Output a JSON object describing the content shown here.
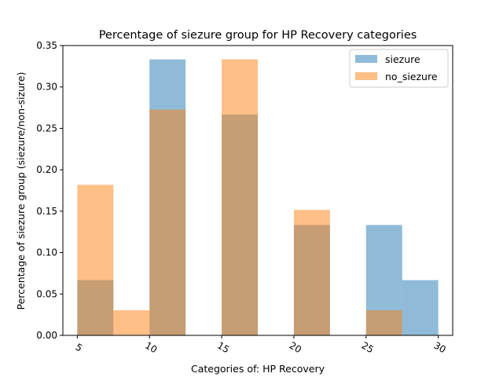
{
  "chart_data": {
    "type": "bar",
    "title": "Percentage of siezure group for HP Recovery categories",
    "xlabel": "Categories of: HP Recovery",
    "ylabel": "Percentage of siezure group (siezure/non-sizure)",
    "xlim": [
      4,
      31
    ],
    "ylim": [
      0,
      0.35
    ],
    "x_ticks": [
      5,
      10,
      15,
      20,
      25,
      30
    ],
    "x_tick_labels": [
      "5",
      "10",
      "15",
      "20",
      "25",
      "30"
    ],
    "y_ticks": [
      0.0,
      0.05,
      0.1,
      0.15,
      0.2,
      0.25,
      0.3,
      0.35
    ],
    "y_tick_labels": [
      "0.00",
      "0.05",
      "0.10",
      "0.15",
      "0.20",
      "0.25",
      "0.30",
      "0.35"
    ],
    "bin_edges": [
      5,
      7.5,
      10,
      12.5,
      15,
      17.5,
      20,
      22.5,
      25,
      27.5,
      30
    ],
    "series": [
      {
        "name": "siezure",
        "color": "#1f77b4",
        "opacity": 0.5,
        "values": [
          0.0667,
          0,
          0.3333,
          0,
          0.2667,
          0,
          0.1333,
          0,
          0.1333,
          0.0667
        ]
      },
      {
        "name": "no_siezure",
        "color": "#ff7f0e",
        "opacity": 0.5,
        "values": [
          0.1818,
          0.0303,
          0.2727,
          0,
          0.3333,
          0,
          0.1515,
          0,
          0.0303,
          0
        ]
      }
    ],
    "grid": false,
    "legend_position": "top-right",
    "x_tick_rotation": "rotated"
  }
}
